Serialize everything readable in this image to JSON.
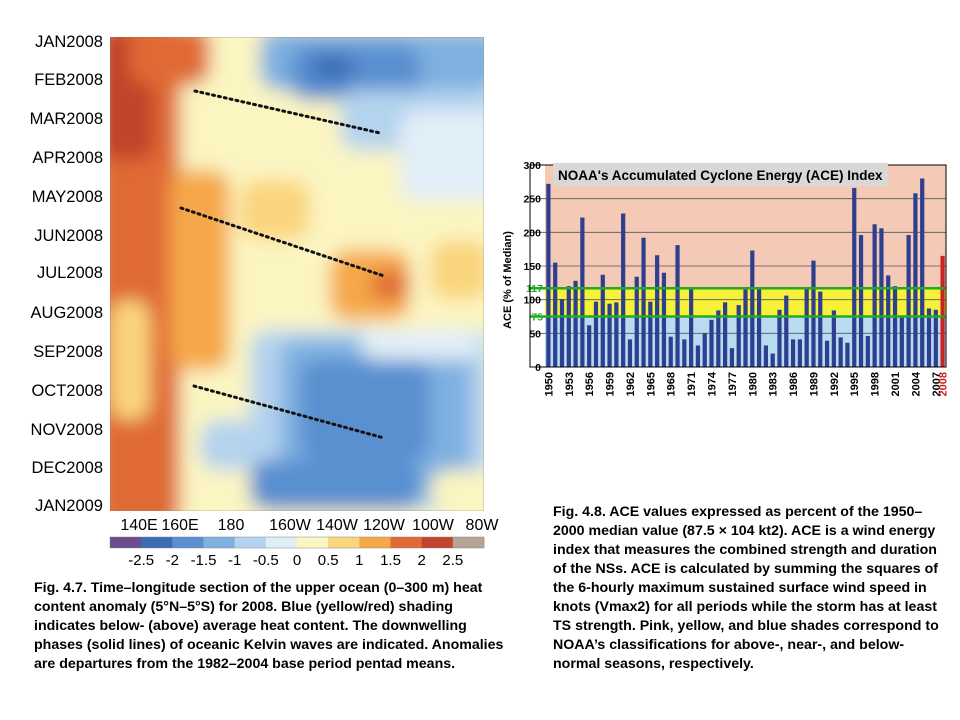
{
  "chart_data": [
    {
      "type": "heatmap",
      "title": "",
      "y_tick_labels": [
        "JAN2008",
        "FEB2008",
        "MAR2008",
        "APR2008",
        "MAY2008",
        "JUN2008",
        "JUL2008",
        "AUG2008",
        "SEP2008",
        "OCT2008",
        "NOV2008",
        "DEC2008",
        "JAN2009"
      ],
      "x_tick_labels": [
        "140E",
        "160E",
        "180",
        "160W",
        "140W",
        "120W",
        "100W",
        "80W"
      ],
      "colorbar": {
        "labels": [
          "-2.5",
          "-2",
          "-1.5",
          "-1",
          "-0.5",
          "0",
          "0.5",
          "1",
          "1.5",
          "2",
          "2.5"
        ],
        "colors": [
          "#6b4c8c",
          "#3b6db5",
          "#5a8fd0",
          "#7fb0e0",
          "#b4d3ee",
          "#e0eef8",
          "#fbf5c2",
          "#fad57e",
          "#f5a848",
          "#e06a36",
          "#c0452c",
          "#b8a494"
        ]
      },
      "kelvin_wave_lines": [
        {
          "start": {
            "lon": "160E",
            "time": "FEB2008"
          },
          "end": {
            "lon": "120W",
            "time": "MAR2008"
          }
        },
        {
          "start": {
            "lon": "160E",
            "time": "MAY2008"
          },
          "end": {
            "lon": "120W",
            "time": "JUL2008"
          }
        },
        {
          "start": {
            "lon": "160E",
            "time": "OCT2008"
          },
          "end": {
            "lon": "120W",
            "time": "NOV2008"
          }
        }
      ]
    },
    {
      "type": "bar",
      "title": "NOAA's Accumulated Cyclone Energy (ACE) Index",
      "xlabel": "",
      "ylabel": "ACE (% of Median)",
      "ylim": [
        0,
        300
      ],
      "y_ticks": [
        0,
        50,
        100,
        150,
        200,
        250,
        300
      ],
      "threshold_lines": [
        {
          "value": 117,
          "label": "117",
          "color": "#22aa22"
        },
        {
          "value": 75,
          "label": "75",
          "color": "#22aa22"
        }
      ],
      "bands": [
        {
          "from": 0,
          "to": 75,
          "color": "#b7dcf2"
        },
        {
          "from": 75,
          "to": 117,
          "color": "#f7f13a"
        },
        {
          "from": 117,
          "to": 300,
          "color": "#f4c9b6"
        }
      ],
      "x_tick_labels": [
        "1950",
        "1953",
        "1956",
        "1959",
        "1962",
        "1965",
        "1968",
        "1971",
        "1974",
        "1977",
        "1980",
        "1983",
        "1986",
        "1989",
        "1992",
        "1995",
        "1998",
        "2001",
        "2004",
        "2007",
        "2008"
      ],
      "highlight_color": "#cc2222",
      "bar_color": "#2e3f8f",
      "x": [
        1950,
        1951,
        1952,
        1953,
        1954,
        1955,
        1956,
        1957,
        1958,
        1959,
        1960,
        1961,
        1962,
        1963,
        1964,
        1965,
        1966,
        1967,
        1968,
        1969,
        1970,
        1971,
        1972,
        1973,
        1974,
        1975,
        1976,
        1977,
        1978,
        1979,
        1980,
        1981,
        1982,
        1983,
        1984,
        1985,
        1986,
        1987,
        1988,
        1989,
        1990,
        1991,
        1992,
        1993,
        1994,
        1995,
        1996,
        1997,
        1998,
        1999,
        2000,
        2001,
        2002,
        2003,
        2004,
        2005,
        2006,
        2007,
        2008
      ],
      "values": [
        272,
        155,
        101,
        120,
        128,
        222,
        62,
        97,
        137,
        94,
        96,
        228,
        41,
        134,
        192,
        97,
        166,
        140,
        45,
        181,
        41,
        115,
        32,
        50,
        70,
        84,
        96,
        28,
        92,
        115,
        173,
        115,
        32,
        20,
        85,
        106,
        41,
        41,
        118,
        158,
        112,
        39,
        84,
        44,
        36,
        266,
        196,
        46,
        212,
        206,
        136,
        120,
        74,
        196,
        258,
        280,
        87,
        85,
        165
      ]
    }
  ],
  "captions": {
    "fig47": "Fig. 4.7. Time–longitude section of the upper ocean (0–300 m) heat content anomaly (5°N–5°S) for 2008. Blue (yellow/red) shading indicates below- (above) average heat content. The downwelling phases (solid lines) of oceanic Kelvin waves are indicated. Anomalies are departures from the 1982–2004 base period pentad means.",
    "fig48": "Fig. 4.8. ACE values expressed as percent of the 1950–2000 median value (87.5 × 104 kt2). ACE is a wind energy index that measures the combined strength and duration of the NSs. ACE is calculated by summing the squares of the 6-hourly maximum sustained surface wind speed in knots (Vmax2) for all periods while the storm has at least TS strength. Pink, yellow, and blue shades correspond to NOAA’s classifications for above-, near-, and below-normal seasons, respectively."
  }
}
